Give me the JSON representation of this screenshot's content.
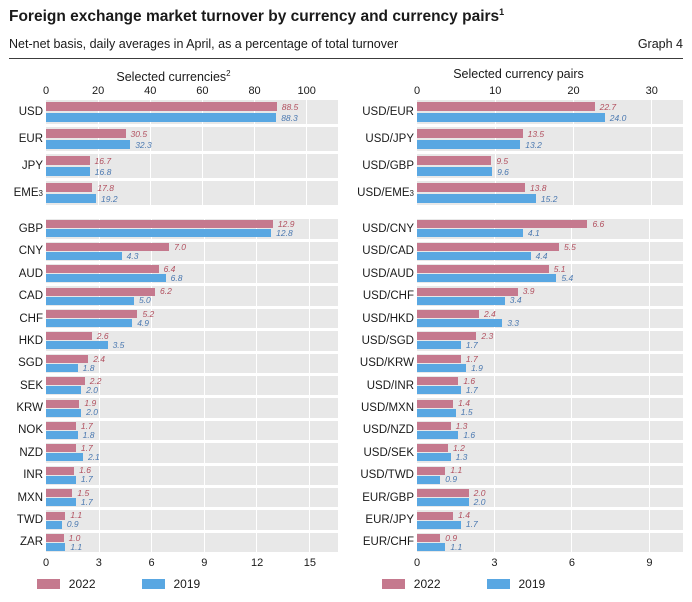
{
  "header": {
    "title": "Foreign exchange market turnover by currency and currency pairs",
    "title_sup": "1",
    "subtitle": "Net-net basis, daily averages in April, as a percentage of total turnover",
    "graph_label": "Graph 4"
  },
  "colors": {
    "bar_2022": "#c5798e",
    "bar_2019": "#59a7e2",
    "label_2022": "#b14f5e",
    "label_2019": "#4a78b0",
    "plot_bg": "#e8e8e8"
  },
  "legend": {
    "items": [
      {
        "label": "2022",
        "color": "#c5798e"
      },
      {
        "label": "2019",
        "color": "#59a7e2"
      }
    ]
  },
  "chart_data": [
    {
      "type": "bar",
      "orientation": "horizontal",
      "title": "Selected currencies",
      "title_sup": "2",
      "axis": "top",
      "ticks": [
        0,
        20,
        40,
        60,
        80,
        100
      ],
      "xlim": [
        0,
        112
      ],
      "grid": true,
      "series_names": [
        "2022",
        "2019"
      ],
      "rows": [
        {
          "label": "USD",
          "sup": "",
          "v2022": 88.5,
          "v2019": 88.3
        },
        {
          "label": "EUR",
          "sup": "",
          "v2022": 30.5,
          "v2019": 32.3
        },
        {
          "label": "JPY",
          "sup": "",
          "v2022": 16.7,
          "v2019": 16.8
        },
        {
          "label": "EME",
          "sup": "3",
          "v2022": 17.8,
          "v2019": 19.2
        }
      ]
    },
    {
      "type": "bar",
      "orientation": "horizontal",
      "title": "Selected currency pairs",
      "title_sup": "",
      "axis": "top",
      "ticks": [
        0,
        10,
        20,
        30
      ],
      "xlim": [
        0,
        34
      ],
      "grid": true,
      "series_names": [
        "2022",
        "2019"
      ],
      "rows": [
        {
          "label": "USD/EUR",
          "sup": "",
          "v2022": 22.7,
          "v2019": 24.0
        },
        {
          "label": "USD/JPY",
          "sup": "",
          "v2022": 13.5,
          "v2019": 13.2
        },
        {
          "label": "USD/GBP",
          "sup": "",
          "v2022": 9.5,
          "v2019": 9.6
        },
        {
          "label": "USD/EME",
          "sup": "3",
          "v2022": 13.8,
          "v2019": 15.2
        }
      ]
    },
    {
      "type": "bar",
      "orientation": "horizontal",
      "title": "",
      "title_sup": "",
      "axis": "bottom",
      "ticks": [
        0,
        3,
        6,
        9,
        12,
        15
      ],
      "xlim": [
        0,
        16.6
      ],
      "grid": true,
      "series_names": [
        "2022",
        "2019"
      ],
      "rows": [
        {
          "label": "GBP",
          "sup": "",
          "v2022": 12.9,
          "v2019": 12.8
        },
        {
          "label": "CNY",
          "sup": "",
          "v2022": 7.0,
          "v2019": 4.3
        },
        {
          "label": "AUD",
          "sup": "",
          "v2022": 6.4,
          "v2019": 6.8
        },
        {
          "label": "CAD",
          "sup": "",
          "v2022": 6.2,
          "v2019": 5.0
        },
        {
          "label": "CHF",
          "sup": "",
          "v2022": 5.2,
          "v2019": 4.9
        },
        {
          "label": "HKD",
          "sup": "",
          "v2022": 2.6,
          "v2019": 3.5
        },
        {
          "label": "SGD",
          "sup": "",
          "v2022": 2.4,
          "v2019": 1.8
        },
        {
          "label": "SEK",
          "sup": "",
          "v2022": 2.2,
          "v2019": 2.0
        },
        {
          "label": "KRW",
          "sup": "",
          "v2022": 1.9,
          "v2019": 2.0
        },
        {
          "label": "NOK",
          "sup": "",
          "v2022": 1.7,
          "v2019": 1.8
        },
        {
          "label": "NZD",
          "sup": "",
          "v2022": 1.7,
          "v2019": 2.1
        },
        {
          "label": "INR",
          "sup": "",
          "v2022": 1.6,
          "v2019": 1.7
        },
        {
          "label": "MXN",
          "sup": "",
          "v2022": 1.5,
          "v2019": 1.7
        },
        {
          "label": "TWD",
          "sup": "",
          "v2022": 1.1,
          "v2019": 0.9
        },
        {
          "label": "ZAR",
          "sup": "",
          "v2022": 1.0,
          "v2019": 1.1
        }
      ]
    },
    {
      "type": "bar",
      "orientation": "horizontal",
      "title": "",
      "title_sup": "",
      "axis": "bottom",
      "ticks": [
        0,
        3,
        6,
        9
      ],
      "xlim": [
        0,
        10.3
      ],
      "grid": true,
      "series_names": [
        "2022",
        "2019"
      ],
      "rows": [
        {
          "label": "USD/CNY",
          "sup": "",
          "v2022": 6.6,
          "v2019": 4.1
        },
        {
          "label": "USD/CAD",
          "sup": "",
          "v2022": 5.5,
          "v2019": 4.4
        },
        {
          "label": "USD/AUD",
          "sup": "",
          "v2022": 5.1,
          "v2019": 5.4
        },
        {
          "label": "USD/CHF",
          "sup": "",
          "v2022": 3.9,
          "v2019": 3.4
        },
        {
          "label": "USD/HKD",
          "sup": "",
          "v2022": 2.4,
          "v2019": 3.3
        },
        {
          "label": "USD/SGD",
          "sup": "",
          "v2022": 2.3,
          "v2019": 1.7
        },
        {
          "label": "USD/KRW",
          "sup": "",
          "v2022": 1.7,
          "v2019": 1.9
        },
        {
          "label": "USD/INR",
          "sup": "",
          "v2022": 1.6,
          "v2019": 1.7
        },
        {
          "label": "USD/MXN",
          "sup": "",
          "v2022": 1.4,
          "v2019": 1.5
        },
        {
          "label": "USD/NZD",
          "sup": "",
          "v2022": 1.3,
          "v2019": 1.6
        },
        {
          "label": "USD/SEK",
          "sup": "",
          "v2022": 1.2,
          "v2019": 1.3
        },
        {
          "label": "USD/TWD",
          "sup": "",
          "v2022": 1.1,
          "v2019": 0.9
        },
        {
          "label": "EUR/GBP",
          "sup": "",
          "v2022": 2.0,
          "v2019": 2.0
        },
        {
          "label": "EUR/JPY",
          "sup": "",
          "v2022": 1.4,
          "v2019": 1.7
        },
        {
          "label": "EUR/CHF",
          "sup": "",
          "v2022": 0.9,
          "v2019": 1.1
        }
      ]
    }
  ]
}
